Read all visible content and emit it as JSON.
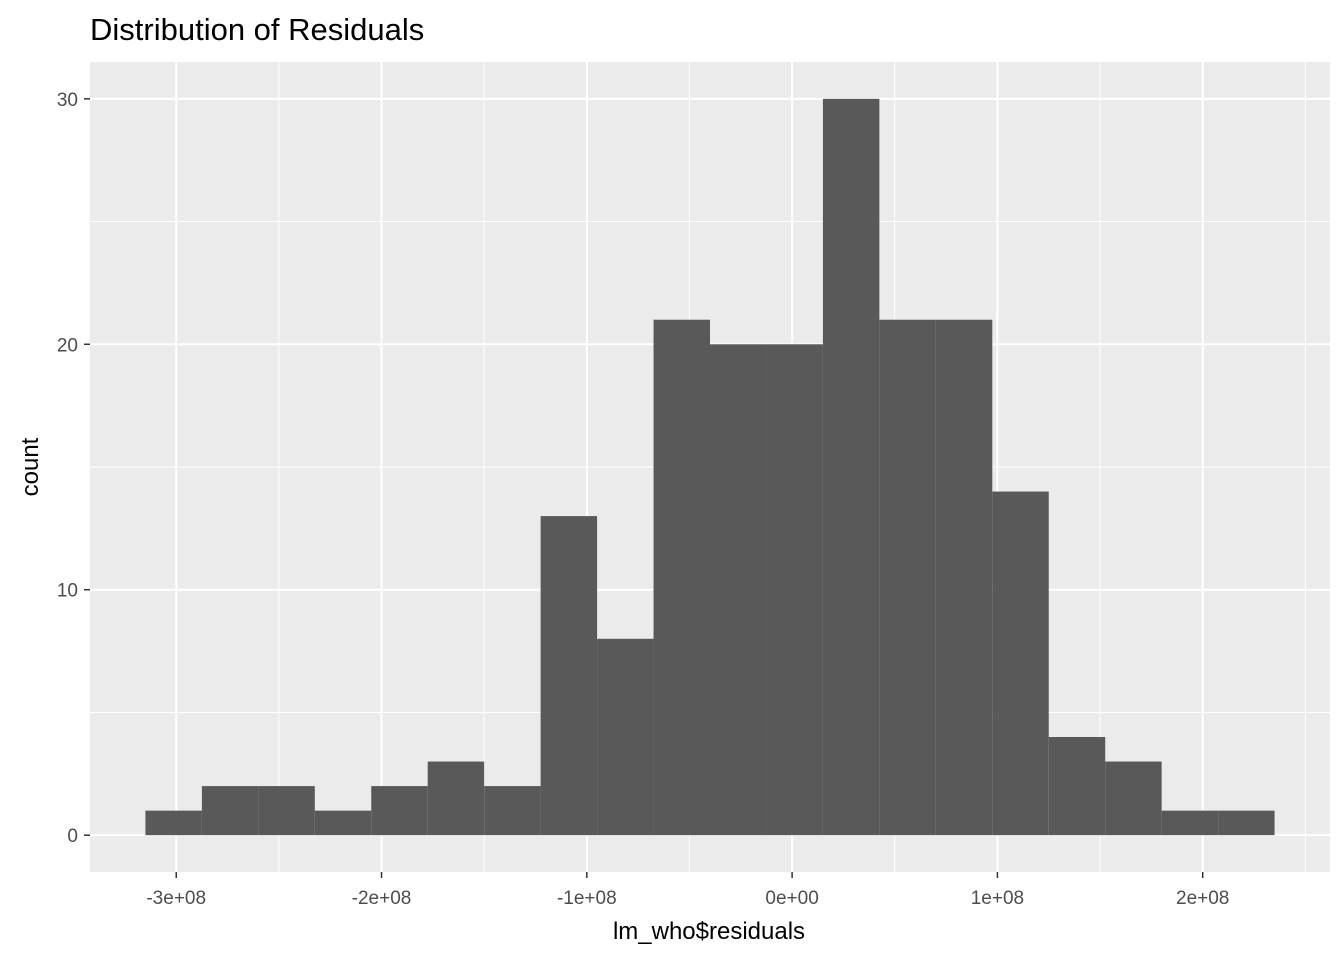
{
  "chart_data": {
    "type": "bar",
    "title": "Distribution of Residuals",
    "xlabel": "lm_who$residuals",
    "ylabel": "count",
    "bin_width": 27500000,
    "bins": [
      {
        "x_start": -315000000,
        "x_end": -287500000,
        "count": 1
      },
      {
        "x_start": -287500000,
        "x_end": -260000000,
        "count": 2
      },
      {
        "x_start": -260000000,
        "x_end": -232500000,
        "count": 2
      },
      {
        "x_start": -232500000,
        "x_end": -205000000,
        "count": 1
      },
      {
        "x_start": -205000000,
        "x_end": -177500000,
        "count": 2
      },
      {
        "x_start": -177500000,
        "x_end": -150000000,
        "count": 3
      },
      {
        "x_start": -150000000,
        "x_end": -122500000,
        "count": 2
      },
      {
        "x_start": -122500000,
        "x_end": -95000000,
        "count": 13
      },
      {
        "x_start": -95000000,
        "x_end": -67500000,
        "count": 8
      },
      {
        "x_start": -67500000,
        "x_end": -40000000,
        "count": 21
      },
      {
        "x_start": -40000000,
        "x_end": -12500000,
        "count": 20
      },
      {
        "x_start": -12500000,
        "x_end": 15000000,
        "count": 20
      },
      {
        "x_start": 15000000,
        "x_end": 42500000,
        "count": 30
      },
      {
        "x_start": 42500000,
        "x_end": 70000000,
        "count": 21
      },
      {
        "x_start": 70000000,
        "x_end": 97500000,
        "count": 21
      },
      {
        "x_start": 97500000,
        "x_end": 125000000,
        "count": 14
      },
      {
        "x_start": 125000000,
        "x_end": 152500000,
        "count": 4
      },
      {
        "x_start": 152500000,
        "x_end": 180000000,
        "count": 3
      },
      {
        "x_start": 180000000,
        "x_end": 207500000,
        "count": 1
      },
      {
        "x_start": 207500000,
        "x_end": 235000000,
        "count": 1
      }
    ],
    "xlim": [
      -342000000,
      262000000
    ],
    "ylim": [
      -1.5,
      31.5
    ],
    "x_ticks": [
      {
        "value": -300000000,
        "label": "-3e+08"
      },
      {
        "value": -200000000,
        "label": "-2e+08"
      },
      {
        "value": -100000000,
        "label": "-1e+08"
      },
      {
        "value": 0,
        "label": "0e+00"
      },
      {
        "value": 100000000,
        "label": "1e+08"
      },
      {
        "value": 200000000,
        "label": "2e+08"
      }
    ],
    "x_minor_ticks": [
      -250000000,
      -150000000,
      -50000000,
      50000000,
      150000000,
      250000000
    ],
    "y_ticks": [
      {
        "value": 0,
        "label": "0"
      },
      {
        "value": 10,
        "label": "10"
      },
      {
        "value": 20,
        "label": "20"
      },
      {
        "value": 30,
        "label": "30"
      }
    ],
    "y_minor_ticks": [
      5,
      15,
      25
    ],
    "grid": true,
    "colors": {
      "bar": "#595959",
      "panel": "#ebebeb",
      "grid": "#ffffff"
    }
  }
}
